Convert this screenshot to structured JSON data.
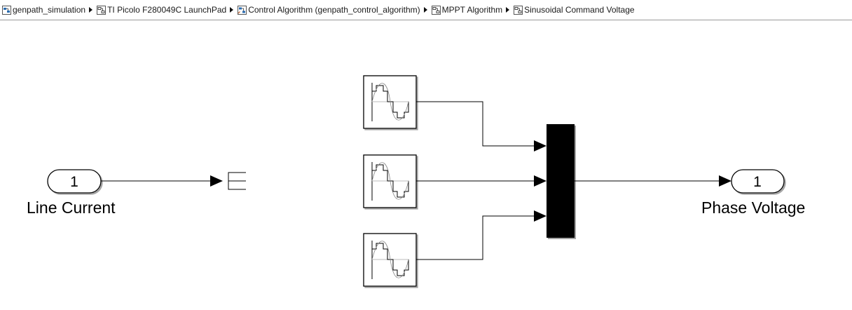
{
  "breadcrumb": {
    "items": [
      {
        "label": "genpath_simulation",
        "icon": "model-icon"
      },
      {
        "label": "TI Picolo F280049C LaunchPad",
        "icon": "subsystem-icon"
      },
      {
        "label": "Control Algorithm (genpath_control_algorithm)",
        "icon": "model-reference-icon"
      },
      {
        "label": "MPPT Algorithm",
        "icon": "subsystem-icon"
      },
      {
        "label": "Sinusoidal Command Voltage",
        "icon": "subsystem-icon"
      }
    ]
  },
  "diagram": {
    "inport": {
      "number": "1",
      "label": "Line Current"
    },
    "outport": {
      "number": "1",
      "label": "Phase Voltage"
    },
    "blocks": [
      {
        "type": "repeating-sequence-stair",
        "icon": "staircase-waveform-icon"
      },
      {
        "type": "repeating-sequence-stair",
        "icon": "staircase-waveform-icon"
      },
      {
        "type": "repeating-sequence-stair",
        "icon": "staircase-waveform-icon"
      }
    ],
    "mux": {
      "type": "mux",
      "inputs": 3
    },
    "terminator": {
      "type": "terminator"
    }
  }
}
